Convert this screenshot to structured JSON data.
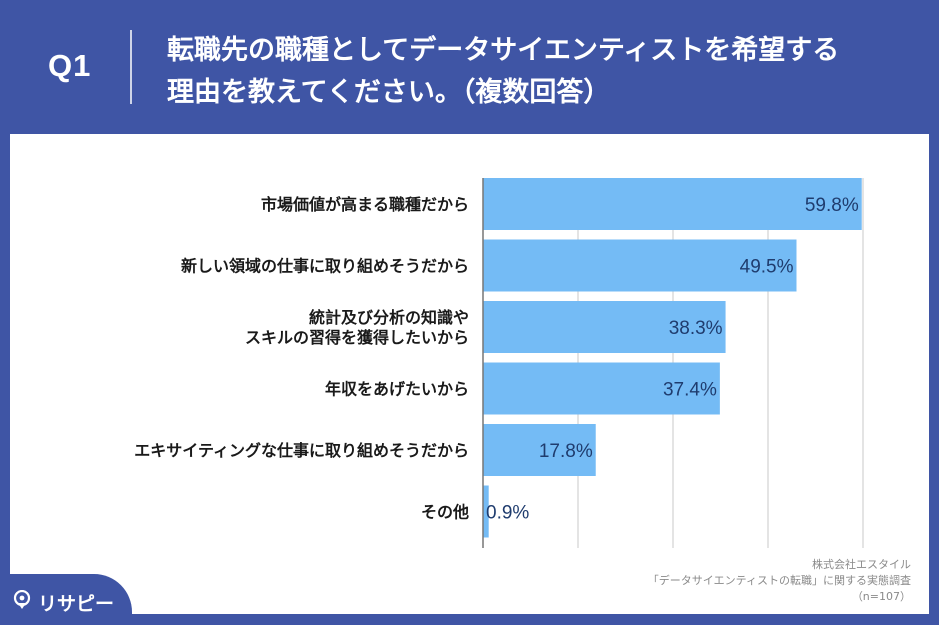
{
  "header": {
    "q_label": "Q1",
    "question": "転職先の職種としてデータサイエンティストを希望する\n理由を教えてください。（複数回答）"
  },
  "colors": {
    "frame": "#3f55a5",
    "bar": "#74bbf5",
    "value_text": "#1f3c6e",
    "grid": "#c8c8c8"
  },
  "chart_data": {
    "type": "bar",
    "orientation": "horizontal",
    "categories": [
      "市場価値が高まる職種だから",
      "新しい領域の仕事に取り組めそうだから",
      "統計及び分析の知識や\nスキルの習得を獲得したいから",
      "年収をあげたいから",
      "エキサイティングな仕事に取り組めそうだから",
      "その他"
    ],
    "values": [
      59.8,
      49.5,
      38.3,
      37.4,
      17.8,
      0.9
    ],
    "value_labels": [
      "59.8%",
      "49.5%",
      "38.3%",
      "37.4%",
      "17.8%",
      "0.9%"
    ],
    "xlim": [
      0,
      60
    ],
    "grid": true
  },
  "source": {
    "company": "株式会社エスタイル",
    "survey": "「データサイエンティストの転職」に関する実態調査",
    "n": "（n=107）"
  },
  "logo": {
    "text": "リサピー",
    "icon": "location-pin-icon"
  }
}
